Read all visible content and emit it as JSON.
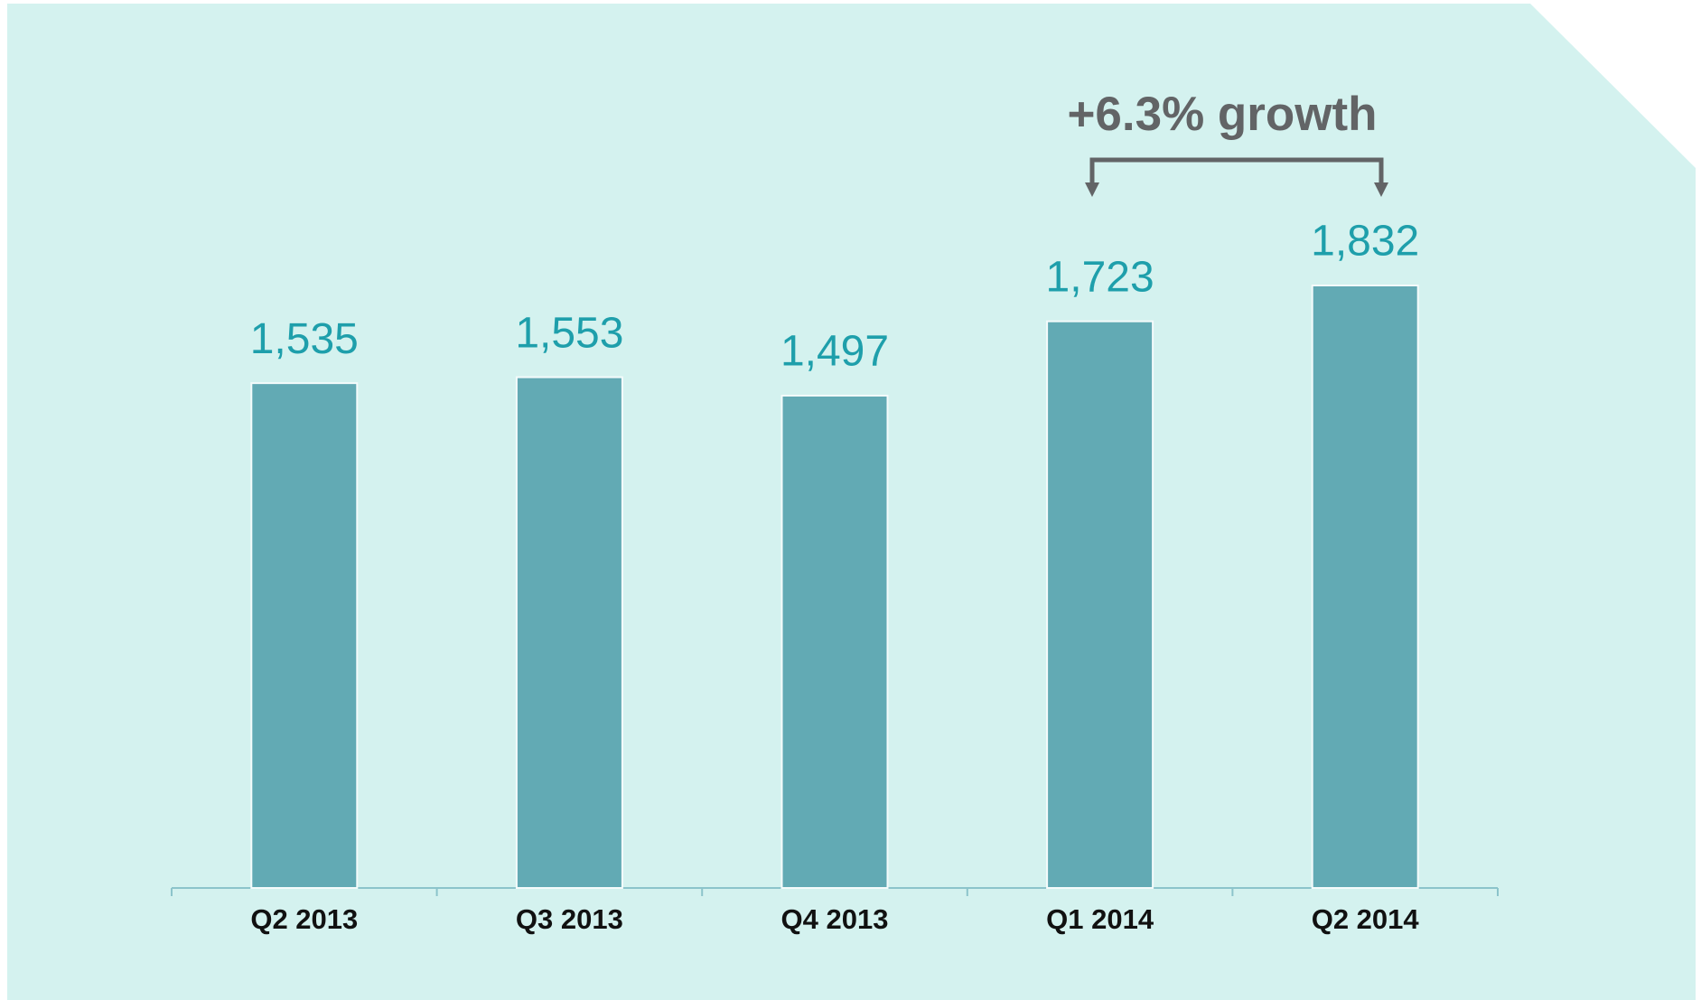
{
  "chart_data": {
    "type": "bar",
    "categories": [
      "Q2 2013",
      "Q3 2013",
      "Q4 2013",
      "Q1 2014",
      "Q2 2014"
    ],
    "values": [
      1535,
      1553,
      1497,
      1723,
      1832
    ],
    "value_labels": [
      "1,535",
      "1,553",
      "1,497",
      "1,723",
      "1,832"
    ],
    "color": "#62aab4",
    "annotation": "+6.3% growth"
  }
}
